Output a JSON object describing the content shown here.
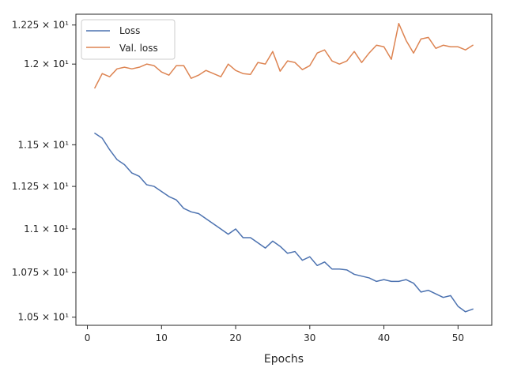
{
  "chart_data": {
    "type": "line",
    "title": "",
    "xlabel": "Epochs",
    "ylabel": "",
    "xlim": [
      -1.55,
      54.55
    ],
    "ylim": [
      10.455,
      12.32
    ],
    "x_ticks": [
      0,
      10,
      20,
      30,
      40,
      50
    ],
    "y_ticks": [
      {
        "value": 10.5,
        "label": "1.05 × 10¹"
      },
      {
        "value": 10.75,
        "label": "1.075 × 10¹"
      },
      {
        "value": 11.0,
        "label": "1.1 × 10¹"
      },
      {
        "value": 11.25,
        "label": "1.125 × 10¹"
      },
      {
        "value": 11.5,
        "label": "1.15 × 10¹"
      },
      {
        "value": 12.0,
        "label": "1.2 × 10¹"
      },
      {
        "value": 12.25,
        "label": "1.225 × 10¹"
      }
    ],
    "y_scale": "log",
    "grid": false,
    "legend_position": "top-left",
    "x": [
      1,
      2,
      3,
      4,
      5,
      6,
      7,
      8,
      9,
      10,
      11,
      12,
      13,
      14,
      15,
      16,
      17,
      18,
      19,
      20,
      21,
      22,
      23,
      24,
      25,
      26,
      27,
      28,
      29,
      30,
      31,
      32,
      33,
      34,
      35,
      36,
      37,
      38,
      39,
      40,
      41,
      42,
      43,
      44,
      45,
      46,
      47,
      48,
      49,
      50,
      51,
      52
    ],
    "series": [
      {
        "name": "Loss",
        "color": "#4c72b0",
        "values": [
          11.57,
          11.54,
          11.47,
          11.41,
          11.38,
          11.33,
          11.31,
          11.26,
          11.25,
          11.22,
          11.19,
          11.17,
          11.12,
          11.1,
          11.09,
          11.06,
          11.03,
          11.0,
          10.97,
          11.0,
          10.95,
          10.95,
          10.92,
          10.89,
          10.93,
          10.9,
          10.86,
          10.87,
          10.82,
          10.84,
          10.79,
          10.81,
          10.77,
          10.77,
          10.765,
          10.74,
          10.73,
          10.72,
          10.7,
          10.71,
          10.7,
          10.7,
          10.71,
          10.69,
          10.64,
          10.65,
          10.63,
          10.61,
          10.62,
          10.56,
          10.53,
          10.545
        ]
      },
      {
        "name": "Val. loss",
        "color": "#dd8452",
        "values": [
          11.85,
          11.94,
          11.92,
          11.97,
          11.98,
          11.97,
          11.98,
          12.0,
          11.99,
          11.95,
          11.93,
          11.99,
          11.99,
          11.91,
          11.93,
          11.96,
          11.94,
          11.92,
          12.0,
          11.96,
          11.94,
          11.935,
          12.01,
          12.0,
          12.08,
          11.955,
          12.02,
          12.01,
          11.965,
          11.99,
          12.07,
          12.09,
          12.02,
          12.0,
          12.02,
          12.08,
          12.01,
          12.07,
          12.12,
          12.11,
          12.03,
          12.26,
          12.15,
          12.07,
          12.16,
          12.17,
          12.1,
          12.12,
          12.11,
          12.11,
          12.09,
          12.12
        ]
      }
    ]
  }
}
